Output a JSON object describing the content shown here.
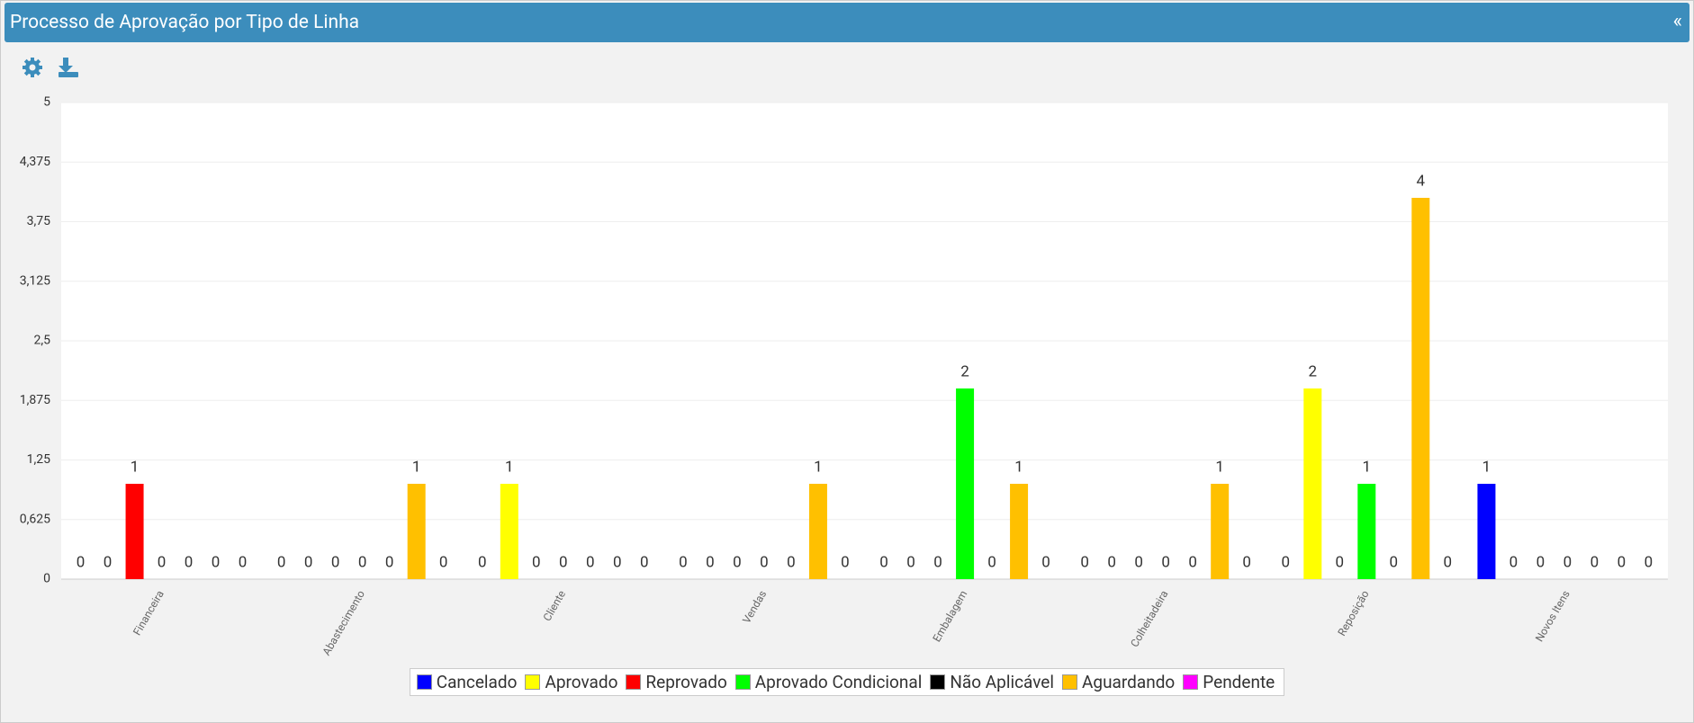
{
  "header": {
    "title": "Processo de Aprovação por Tipo de Linha",
    "collapse": "«"
  },
  "chart_data": {
    "type": "bar",
    "categories": [
      "Financeira",
      "Abastecimento",
      "Cliente",
      "Vendas",
      "Embalagem",
      "Colheitadeira",
      "Reposição",
      "Novos Itens"
    ],
    "series": [
      {
        "name": "Cancelado",
        "color": "#0000ff",
        "values": [
          0,
          0,
          0,
          0,
          0,
          0,
          0,
          1
        ]
      },
      {
        "name": "Aprovado",
        "color": "#ffff00",
        "values": [
          0,
          0,
          1,
          0,
          0,
          0,
          2,
          0
        ]
      },
      {
        "name": "Reprovado",
        "color": "#ff0000",
        "values": [
          1,
          0,
          0,
          0,
          0,
          0,
          0,
          0
        ]
      },
      {
        "name": "Aprovado Condicional",
        "color": "#00ff00",
        "values": [
          0,
          0,
          0,
          0,
          2,
          0,
          1,
          0
        ]
      },
      {
        "name": "Não Aplicável",
        "color": "#000000",
        "values": [
          0,
          0,
          0,
          0,
          0,
          0,
          0,
          0
        ]
      },
      {
        "name": "Aguardando",
        "color": "#ffc000",
        "values": [
          0,
          1,
          0,
          1,
          1,
          1,
          4,
          0
        ]
      },
      {
        "name": "Pendente",
        "color": "#ff00ff",
        "values": [
          0,
          0,
          0,
          0,
          0,
          0,
          0,
          0
        ]
      }
    ],
    "ylim": [
      0,
      5
    ],
    "yticks": [
      0,
      {
        "value": 0.625,
        "label": "0,625"
      },
      {
        "value": 1.25,
        "label": "1,25"
      },
      {
        "value": 1.875,
        "label": "1,875"
      },
      {
        "value": 2.5,
        "label": "2,5"
      },
      {
        "value": 3.125,
        "label": "3,125"
      },
      {
        "value": 3.75,
        "label": "3,75"
      },
      {
        "value": 4.375,
        "label": "4,375"
      },
      5
    ],
    "grid": true,
    "legend": "bottom"
  }
}
